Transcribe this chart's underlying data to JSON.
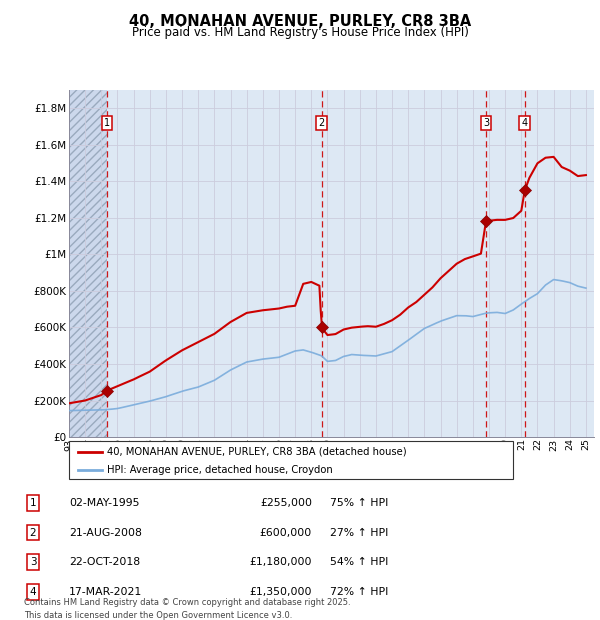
{
  "title": "40, MONAHAN AVENUE, PURLEY, CR8 3BA",
  "subtitle": "Price paid vs. HM Land Registry's House Price Index (HPI)",
  "legend_line1": "40, MONAHAN AVENUE, PURLEY, CR8 3BA (detached house)",
  "legend_line2": "HPI: Average price, detached house, Croydon",
  "footer": "Contains HM Land Registry data © Crown copyright and database right 2025.\nThis data is licensed under the Open Government Licence v3.0.",
  "transactions": [
    {
      "num": 1,
      "date": "02-MAY-1995",
      "price": 255000,
      "year": 1995.37,
      "hpi_pct": "75% ↑ HPI"
    },
    {
      "num": 2,
      "date": "21-AUG-2008",
      "price": 600000,
      "year": 2008.64,
      "hpi_pct": "27% ↑ HPI"
    },
    {
      "num": 3,
      "date": "22-OCT-2018",
      "price": 1180000,
      "year": 2018.81,
      "hpi_pct": "54% ↑ HPI"
    },
    {
      "num": 4,
      "date": "17-MAR-2021",
      "price": 1350000,
      "year": 2021.21,
      "hpi_pct": "72% ↑ HPI"
    }
  ],
  "red_color": "#cc0000",
  "blue_color": "#7aacdc",
  "marker_color": "#aa0000",
  "dashed_color": "#cc0000",
  "box_color": "#cc0000",
  "grid_color": "#ccccdd",
  "bg_color": "#dde8f4",
  "hatch_bg_color": "#ccd8ec",
  "ylim": [
    0,
    1900000
  ],
  "xlim_start": 1993.0,
  "xlim_end": 2025.5,
  "yticks": [
    0,
    200000,
    400000,
    600000,
    800000,
    1000000,
    1200000,
    1400000,
    1600000,
    1800000
  ],
  "ytick_labels": [
    "£0",
    "£200K",
    "£400K",
    "£600K",
    "£800K",
    "£1M",
    "£1.2M",
    "£1.4M",
    "£1.6M",
    "£1.8M"
  ]
}
